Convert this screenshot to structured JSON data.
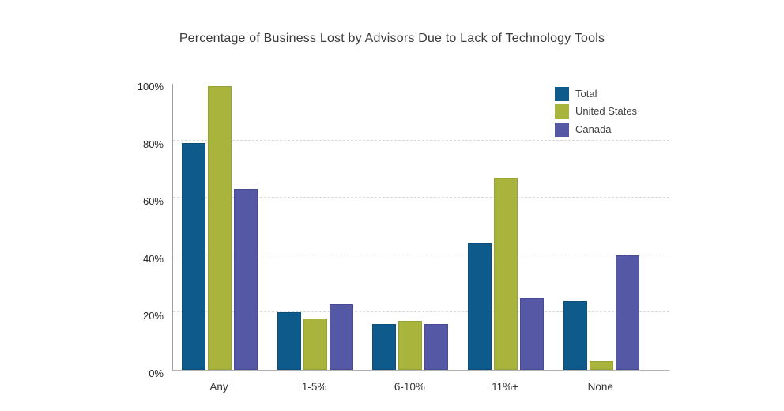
{
  "title": "Percentage of Business Lost by Advisors Due to Lack of Technology Tools",
  "chart_data": {
    "type": "bar",
    "categories": [
      "Any",
      "1-5%",
      "6-10%",
      "11%+",
      "None"
    ],
    "series": [
      {
        "name": "Total",
        "color": "#0E5A8B",
        "border": "#0A4E79",
        "values": [
          79,
          20,
          16,
          44,
          24
        ]
      },
      {
        "name": "United States",
        "color": "#A9B43C",
        "border": "#96A233",
        "values": [
          99,
          18,
          17,
          67,
          3
        ]
      },
      {
        "name": "Canada",
        "color": "#5559A5",
        "border": "#474B92",
        "values": [
          63,
          23,
          16,
          25,
          40
        ]
      }
    ],
    "yticks": [
      {
        "value": 0,
        "label": "0%"
      },
      {
        "value": 20,
        "label": "20%"
      },
      {
        "value": 40,
        "label": "40%"
      },
      {
        "value": 60,
        "label": "60%"
      },
      {
        "value": 80,
        "label": "80%"
      },
      {
        "value": 100,
        "label": "100%"
      }
    ],
    "ylim": [
      0,
      100
    ],
    "xlabel": "",
    "ylabel": "",
    "grid": "horizontal-dashed",
    "legend_position": "top-right-inside"
  }
}
